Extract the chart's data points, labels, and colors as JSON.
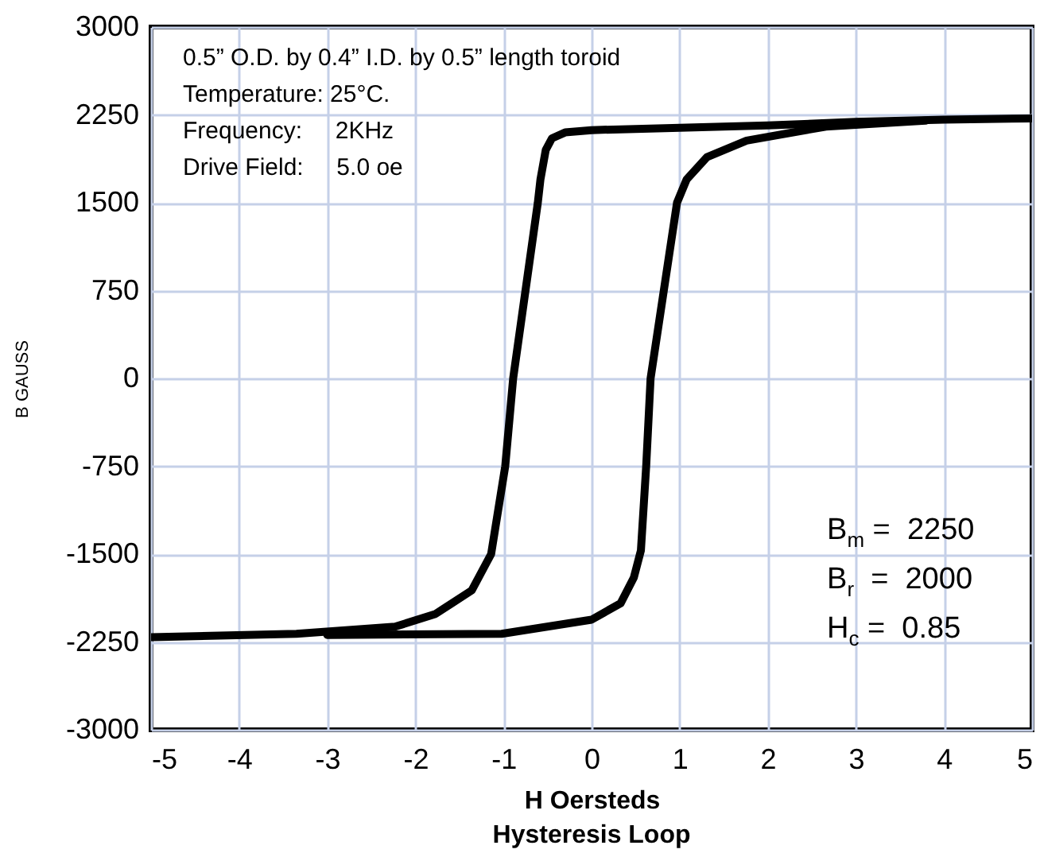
{
  "chart_data": {
    "type": "line",
    "title": "Hysteresis Loop",
    "xlabel": "H Oersteds",
    "ylabel": "B GAUSS",
    "series": [
      {
        "color": "#000000",
        "x": [
          -5,
          -3.35,
          -2.23,
          -1.77,
          -1.36,
          -1.14,
          -0.98,
          -0.89,
          -0.61,
          -0.58,
          -0.52,
          -0.45,
          -0.3,
          0,
          1,
          2,
          3,
          4,
          5
        ],
        "values": [
          -2210,
          -2180,
          -2120,
          -2010,
          -1810,
          -1500,
          -750,
          0,
          1500,
          1700,
          1950,
          2050,
          2100,
          2120,
          2140,
          2160,
          2190,
          2210,
          2220
        ]
      },
      {
        "color": "#000000",
        "x": [
          -3,
          -1.02,
          0,
          0.33,
          0.48,
          0.56,
          0.62,
          0.67,
          0.82,
          0.97,
          1.08,
          1.31,
          1.76,
          2.66,
          3.79
        ],
        "values": [
          -2190,
          -2180,
          -2060,
          -1920,
          -1700,
          -1470,
          -750,
          0,
          750,
          1500,
          1700,
          1890,
          2030,
          2150,
          2200
        ]
      }
    ],
    "xlim": [
      -5,
      5
    ],
    "xticks": [
      -5,
      -4,
      -3,
      -2,
      -1,
      0,
      1,
      2,
      3,
      4,
      5
    ],
    "ylim": [
      -3000,
      3000
    ],
    "yticks": [
      -3000,
      -2250,
      -1500,
      -750,
      0,
      750,
      1500,
      2250,
      3000
    ],
    "grid": true,
    "annotations": [
      "0.5” O.D. by 0.4” I.D. by 0.5” length toroid",
      "Temperature: 25°C.",
      "Frequency:     2KHz",
      "Drive Field:     5.0 oe",
      "B$_{m}$ =  2250",
      "B$_{r}$  =  2000",
      "H$_{c}$ =  0.85"
    ]
  }
}
